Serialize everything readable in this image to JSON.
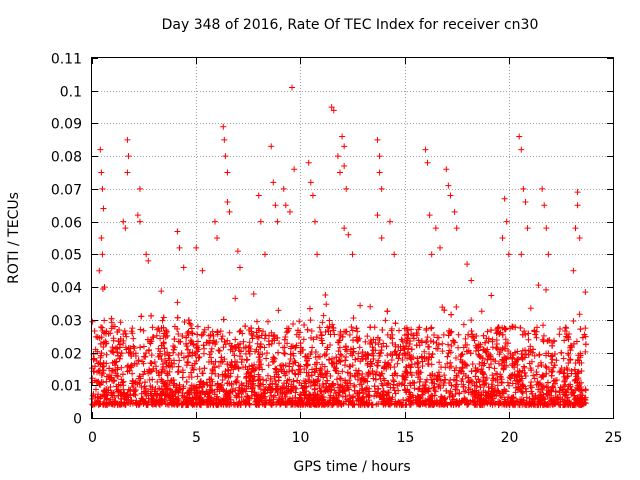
{
  "chart_data": {
    "type": "scatter",
    "title": "Day 348 of 2016, Rate Of TEC Index for receiver cn30",
    "xlabel": "GPS time / hours",
    "ylabel": "ROTI / TECUs",
    "xlim": [
      0,
      25
    ],
    "ylim": [
      0,
      0.11
    ],
    "x_ticks": [
      0,
      5,
      10,
      15,
      20,
      25
    ],
    "x_tick_labels": [
      "0",
      "5",
      "10",
      "15",
      "20",
      "25"
    ],
    "y_ticks": [
      0,
      0.01,
      0.02,
      0.03,
      0.04,
      0.05,
      0.06,
      0.07,
      0.08,
      0.09,
      0.1,
      0.11
    ],
    "y_tick_labels": [
      "0",
      "0.01",
      "0.02",
      "0.03",
      "0.04",
      "0.05",
      "0.06",
      "0.07",
      "0.08",
      "0.09",
      "0.1",
      "0.11"
    ],
    "grid": true,
    "marker": "+",
    "color": "#ff0000",
    "series": [
      {
        "name": "ROTI",
        "points": [
          [
            0.4,
            0.082
          ],
          [
            0.45,
            0.075
          ],
          [
            0.5,
            0.07
          ],
          [
            0.55,
            0.064
          ],
          [
            0.45,
            0.055
          ],
          [
            0.5,
            0.05
          ],
          [
            0.35,
            0.045
          ],
          [
            0.6,
            0.04
          ],
          [
            1.7,
            0.085
          ],
          [
            1.75,
            0.08
          ],
          [
            1.7,
            0.075
          ],
          [
            1.5,
            0.06
          ],
          [
            1.6,
            0.058
          ],
          [
            2.3,
            0.07
          ],
          [
            2.2,
            0.062
          ],
          [
            2.3,
            0.06
          ],
          [
            2.6,
            0.05
          ],
          [
            2.7,
            0.048
          ],
          [
            4.1,
            0.057
          ],
          [
            4.2,
            0.052
          ],
          [
            4.4,
            0.046
          ],
          [
            5.0,
            0.052
          ],
          [
            5.3,
            0.045
          ],
          [
            5.9,
            0.06
          ],
          [
            6.0,
            0.055
          ],
          [
            6.3,
            0.089
          ],
          [
            6.35,
            0.085
          ],
          [
            6.4,
            0.08
          ],
          [
            6.5,
            0.075
          ],
          [
            6.5,
            0.066
          ],
          [
            6.6,
            0.063
          ],
          [
            7.0,
            0.051
          ],
          [
            7.1,
            0.046
          ],
          [
            8.0,
            0.068
          ],
          [
            8.1,
            0.06
          ],
          [
            8.3,
            0.05
          ],
          [
            8.6,
            0.083
          ],
          [
            8.7,
            0.072
          ],
          [
            8.8,
            0.065
          ],
          [
            8.9,
            0.06
          ],
          [
            9.2,
            0.07
          ],
          [
            9.3,
            0.065
          ],
          [
            9.5,
            0.063
          ],
          [
            9.6,
            0.101
          ],
          [
            9.7,
            0.076
          ],
          [
            10.4,
            0.078
          ],
          [
            10.5,
            0.072
          ],
          [
            10.6,
            0.068
          ],
          [
            10.7,
            0.06
          ],
          [
            10.8,
            0.05
          ],
          [
            11.5,
            0.095
          ],
          [
            11.6,
            0.094
          ],
          [
            11.8,
            0.08
          ],
          [
            11.9,
            0.075
          ],
          [
            12.0,
            0.086
          ],
          [
            12.1,
            0.083
          ],
          [
            12.1,
            0.077
          ],
          [
            12.2,
            0.07
          ],
          [
            12.1,
            0.058
          ],
          [
            12.3,
            0.056
          ],
          [
            12.5,
            0.05
          ],
          [
            13.7,
            0.085
          ],
          [
            13.8,
            0.08
          ],
          [
            13.8,
            0.075
          ],
          [
            13.9,
            0.07
          ],
          [
            13.7,
            0.062
          ],
          [
            13.9,
            0.055
          ],
          [
            14.3,
            0.06
          ],
          [
            14.5,
            0.05
          ],
          [
            16.0,
            0.082
          ],
          [
            16.1,
            0.078
          ],
          [
            16.2,
            0.062
          ],
          [
            16.3,
            0.05
          ],
          [
            16.5,
            0.058
          ],
          [
            16.7,
            0.052
          ],
          [
            17.0,
            0.076
          ],
          [
            17.1,
            0.071
          ],
          [
            17.2,
            0.068
          ],
          [
            17.4,
            0.063
          ],
          [
            17.5,
            0.058
          ],
          [
            18.0,
            0.047
          ],
          [
            18.2,
            0.042
          ],
          [
            19.8,
            0.067
          ],
          [
            19.9,
            0.06
          ],
          [
            19.7,
            0.055
          ],
          [
            20.0,
            0.05
          ],
          [
            20.5,
            0.086
          ],
          [
            20.6,
            0.082
          ],
          [
            20.7,
            0.07
          ],
          [
            20.8,
            0.066
          ],
          [
            20.9,
            0.058
          ],
          [
            20.6,
            0.05
          ],
          [
            21.6,
            0.07
          ],
          [
            21.7,
            0.065
          ],
          [
            21.8,
            0.058
          ],
          [
            21.9,
            0.05
          ],
          [
            23.3,
            0.069
          ],
          [
            23.3,
            0.065
          ],
          [
            23.2,
            0.058
          ],
          [
            23.4,
            0.055
          ],
          [
            23.1,
            0.045
          ]
        ]
      }
    ]
  }
}
